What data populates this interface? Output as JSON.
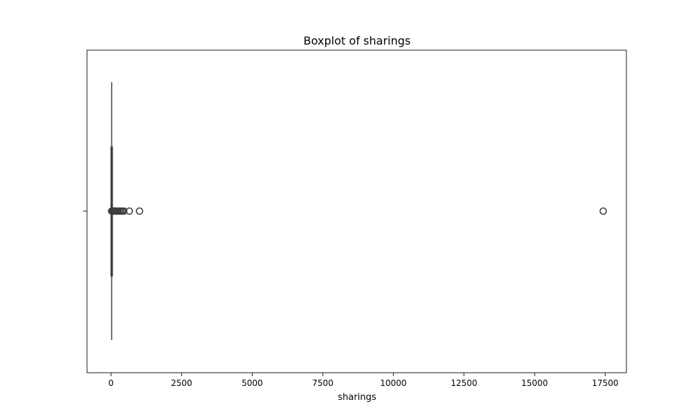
{
  "chart_data": {
    "type": "boxplot",
    "title": "Boxplot of sharings",
    "xlabel": "sharings",
    "ylabel": "",
    "orientation": "horizontal",
    "xlim": [
      -850,
      18250
    ],
    "x_ticks": [
      0,
      2500,
      5000,
      7500,
      10000,
      12500,
      15000,
      17500
    ],
    "x_tick_labels": [
      "0",
      "2500",
      "5000",
      "7500",
      "10000",
      "12500",
      "15000",
      "17500"
    ],
    "grid": false,
    "legend": "none",
    "box": {
      "q1": 0,
      "median": 2,
      "q3": 8,
      "whisker_low": 0,
      "whisker_high": 20
    },
    "outliers": [
      25,
      40,
      60,
      80,
      100,
      130,
      160,
      200,
      250,
      300,
      350,
      400,
      450,
      650,
      1010,
      17430
    ],
    "colors": {
      "line": "#3d3d3d",
      "box_fill": "#4c72b0",
      "frame": "#000000"
    }
  }
}
